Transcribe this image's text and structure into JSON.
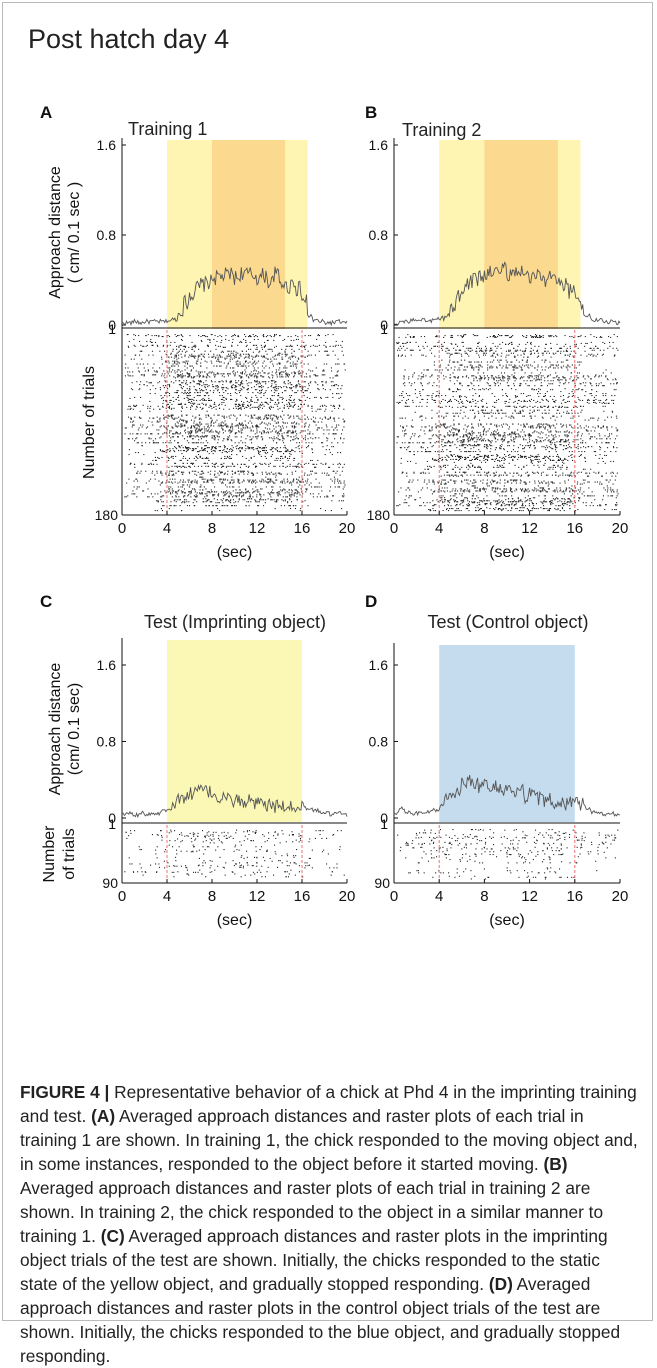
{
  "figure_title": "Post hatch day 4",
  "chart_data": [
    {
      "panel": "A",
      "type": "line",
      "title": "Training 1",
      "ylabel": "Approach distance ( cm/ 0.1 sec )",
      "ylim": [
        0,
        1.6
      ],
      "yticks": [
        "0",
        "0.8",
        "1.6"
      ],
      "xlim": [
        0,
        20
      ],
      "highlight_outer": [
        4,
        16.5
      ],
      "highlight_inner": [
        8,
        14.5
      ],
      "highlight_color": "#fff5b3",
      "inner_color": "#fbd98e",
      "series": [
        {
          "values": [
            0.02,
            0.02,
            0.03,
            0.02,
            0.03,
            0.03,
            0.03,
            0.03,
            0.04,
            0.05,
            0.1,
            0.2,
            0.28,
            0.33,
            0.36,
            0.38,
            0.42,
            0.43,
            0.44,
            0.45,
            0.42,
            0.46,
            0.45,
            0.44,
            0.42,
            0.44,
            0.38,
            0.45,
            0.38,
            0.34,
            0.38,
            0.32,
            0.22,
            0.08,
            0.04,
            0.03,
            0.02,
            0.02,
            0.03,
            0.02,
            0.02
          ]
        }
      ],
      "raster": {
        "ylabel": "Number of trials",
        "trials": 180,
        "ytick_top": "1",
        "ytick_bottom": "180",
        "event_lines": [
          4,
          16
        ]
      },
      "xticks": [
        "0",
        "4",
        "8",
        "12",
        "16",
        "20"
      ],
      "xlabel": "(sec)"
    },
    {
      "panel": "B",
      "type": "line",
      "title": "Training 2",
      "ylabel": "",
      "ylim": [
        0,
        1.6
      ],
      "yticks": [
        "0",
        "0.8",
        "1.6"
      ],
      "xlim": [
        0,
        20
      ],
      "highlight_outer": [
        4,
        16.5
      ],
      "highlight_inner": [
        8,
        14.5
      ],
      "highlight_color": "#fff5b3",
      "inner_color": "#fbd98e",
      "series": [
        {
          "values": [
            0.02,
            0.03,
            0.03,
            0.04,
            0.03,
            0.04,
            0.04,
            0.05,
            0.06,
            0.08,
            0.15,
            0.25,
            0.32,
            0.38,
            0.4,
            0.43,
            0.45,
            0.46,
            0.48,
            0.5,
            0.46,
            0.48,
            0.46,
            0.46,
            0.44,
            0.45,
            0.4,
            0.42,
            0.38,
            0.36,
            0.36,
            0.3,
            0.24,
            0.15,
            0.08,
            0.05,
            0.04,
            0.03,
            0.03,
            0.02,
            0.02
          ]
        }
      ],
      "raster": {
        "ylabel": "",
        "trials": 180,
        "ytick_top": "1",
        "ytick_bottom": "180",
        "event_lines": [
          4,
          16
        ]
      },
      "xticks": [
        "0",
        "4",
        "8",
        "12",
        "16",
        "20"
      ],
      "xlabel": "(sec)"
    },
    {
      "panel": "C",
      "type": "line",
      "title": "Test (Imprinting object)",
      "ylabel": "Approach distance (cm/ 0.1 sec)",
      "ylim": [
        0,
        1.6
      ],
      "yticks": [
        "0",
        "0.8",
        "1.6"
      ],
      "xlim": [
        0,
        20
      ],
      "highlight_outer": [
        4,
        16
      ],
      "highlight_color": "#fbf8b6",
      "series": [
        {
          "values": [
            0.04,
            0.05,
            0.03,
            0.06,
            0.04,
            0.05,
            0.05,
            0.08,
            0.1,
            0.15,
            0.2,
            0.22,
            0.26,
            0.28,
            0.3,
            0.27,
            0.25,
            0.2,
            0.22,
            0.18,
            0.2,
            0.15,
            0.18,
            0.14,
            0.15,
            0.12,
            0.14,
            0.12,
            0.12,
            0.1,
            0.12,
            0.1,
            0.12,
            0.09,
            0.08,
            0.06,
            0.05,
            0.04,
            0.05,
            0.03,
            0.03
          ]
        }
      ],
      "raster": {
        "ylabel": "Number of trials",
        "trials": 90,
        "ytick_top": "1",
        "ytick_bottom": "90",
        "event_lines": [
          4,
          16
        ]
      },
      "xticks": [
        "0",
        "4",
        "8",
        "12",
        "16",
        "20"
      ],
      "xlabel": "(sec)"
    },
    {
      "panel": "D",
      "type": "line",
      "title": "Test (Control object)",
      "ylabel": "",
      "ylim": [
        0,
        1.6
      ],
      "yticks": [
        "0",
        "0.8",
        "1.6"
      ],
      "xlim": [
        0,
        20
      ],
      "highlight_outer": [
        4,
        16
      ],
      "highlight_color": "#c5dcee",
      "series": [
        {
          "values": [
            0.05,
            0.1,
            0.06,
            0.04,
            0.05,
            0.05,
            0.06,
            0.08,
            0.12,
            0.2,
            0.26,
            0.3,
            0.35,
            0.4,
            0.36,
            0.32,
            0.34,
            0.3,
            0.33,
            0.28,
            0.3,
            0.25,
            0.28,
            0.22,
            0.25,
            0.2,
            0.18,
            0.2,
            0.15,
            0.18,
            0.14,
            0.16,
            0.2,
            0.14,
            0.1,
            0.06,
            0.05,
            0.04,
            0.05,
            0.04,
            0.05
          ]
        }
      ],
      "raster": {
        "ylabel": "",
        "trials": 90,
        "ytick_top": "1",
        "ytick_bottom": "90",
        "event_lines": [
          4,
          16
        ]
      },
      "xticks": [
        "0",
        "4",
        "8",
        "12",
        "16",
        "20"
      ],
      "xlabel": "(sec)"
    }
  ],
  "caption": {
    "label": "FIGURE 4 |",
    "intro": " Representative behavior of a chick at Phd 4 in the imprinting training and test. ",
    "a_label": "(A)",
    "a_text": " Averaged approach distances and raster plots of each trial in training 1 are shown. In training 1, the chick responded to the moving object and, in some instances, responded to the object before it started moving. ",
    "b_label": "(B)",
    "b_text": " Averaged approach distances and raster plots of each trial in training 2 are shown. In training 2, the chick responded to the object in a similar manner to training 1. ",
    "c_label": "(C)",
    "c_text": " Averaged approach distances and raster plots in the imprinting object trials of the test are shown. Initially, the chicks responded to the static state of the yellow object, and gradually stopped responding. ",
    "d_label": "(D)",
    "d_text": " Averaged approach distances and raster plots in the control object trials of the test are shown. Initially, the chicks responded to the blue object, and gradually stopped responding."
  }
}
